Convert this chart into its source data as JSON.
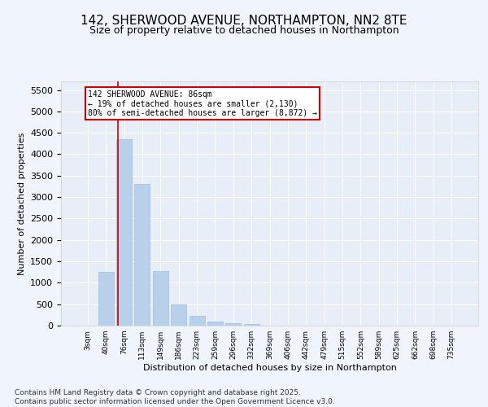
{
  "title": "142, SHERWOOD AVENUE, NORTHAMPTON, NN2 8TE",
  "subtitle": "Size of property relative to detached houses in Northampton",
  "xlabel": "Distribution of detached houses by size in Northampton",
  "ylabel": "Number of detached properties",
  "categories": [
    "3sqm",
    "40sqm",
    "76sqm",
    "113sqm",
    "149sqm",
    "186sqm",
    "223sqm",
    "259sqm",
    "296sqm",
    "332sqm",
    "369sqm",
    "406sqm",
    "442sqm",
    "479sqm",
    "515sqm",
    "552sqm",
    "589sqm",
    "625sqm",
    "662sqm",
    "698sqm",
    "735sqm"
  ],
  "values": [
    0,
    1260,
    4350,
    3300,
    1270,
    500,
    220,
    90,
    60,
    40,
    0,
    0,
    0,
    0,
    0,
    0,
    0,
    0,
    0,
    0,
    0
  ],
  "bar_color": "#b8d0ea",
  "bar_edgecolor": "#9dbfe0",
  "bg_color": "#e8eef8",
  "grid_color": "#ffffff",
  "annotation_line1": "142 SHERWOOD AVENUE: 86sqm",
  "annotation_line2": "← 19% of detached houses are smaller (2,130)",
  "annotation_line3": "80% of semi-detached houses are larger (8,872) →",
  "annotation_box_color": "#cc0000",
  "vline_x_index": 2,
  "ylim_max": 5700,
  "yticks": [
    0,
    500,
    1000,
    1500,
    2000,
    2500,
    3000,
    3500,
    4000,
    4500,
    5000,
    5500
  ],
  "footer_line1": "Contains HM Land Registry data © Crown copyright and database right 2025.",
  "footer_line2": "Contains public sector information licensed under the Open Government Licence v3.0.",
  "fig_bg": "#f0f4fc",
  "title_fontsize": 11,
  "subtitle_fontsize": 9,
  "footer_fontsize": 6.5,
  "ylabel_fontsize": 8,
  "xlabel_fontsize": 8
}
